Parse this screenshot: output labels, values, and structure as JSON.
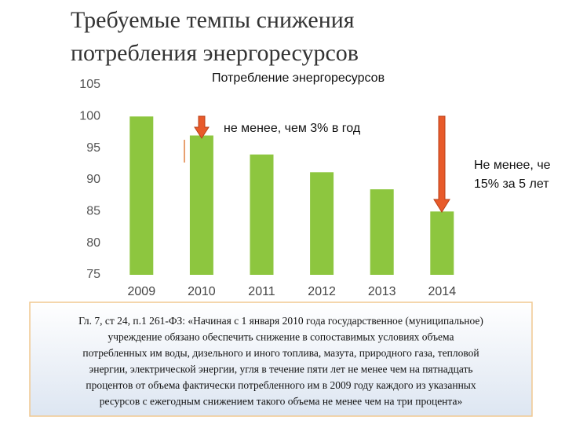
{
  "chart_data": {
    "type": "bar",
    "slide_title": [
      "Требуемые темпы снижения",
      "потребления энергоресурсов"
    ],
    "title": "Потребление энергоресурсов",
    "categories": [
      "2009",
      "2010",
      "2011",
      "2012",
      "2013",
      "2014"
    ],
    "values": [
      100,
      97,
      94,
      91.2,
      88.5,
      85
    ],
    "color": "#8dc63f",
    "ylim": [
      75,
      105
    ],
    "yticks": [
      75,
      80,
      85,
      90,
      95,
      100,
      105
    ],
    "grid": false,
    "annotations": [
      "не менее, чем 3% в год",
      "Не менее, че",
      "15% за 5 лет"
    ],
    "note": [
      "Гл. 7, ст 24, п.1 261-ФЗ: «Начиная с 1 января 2010 года государственное (муниципальное)",
      "учреждение обязано обеспечить снижение в сопоставимых условиях объема",
      "потребленных им воды, дизельного и иного топлива, мазута, природного газа, тепловой",
      "энергии, электрической энергии, угля в течение пяти лет не менее чем на пятнадцать",
      "процентов от объема фактически потребленного им в 2009 году каждого из указанных",
      "ресурсов с ежегодным снижением такого объема не менее чем на три процента»"
    ]
  }
}
